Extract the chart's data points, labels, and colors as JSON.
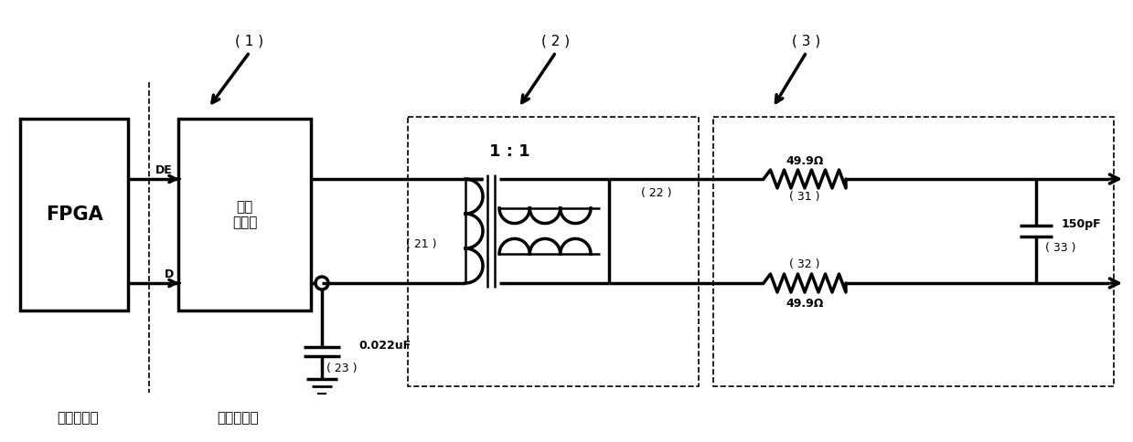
{
  "background": "#ffffff",
  "figsize": [
    12.39,
    4.84
  ],
  "dpi": 100,
  "fpga_label": "FPGA",
  "bt_label": "总线\n收发器",
  "de_label": "DE",
  "d_label": "D",
  "ratio_label": "1 : 1",
  "cap23_label": "0.022uF",
  "num23_label": "( 23 )",
  "res31_label": "49.9Ω",
  "res32_label": "49.9Ω",
  "cap33_label": "150pF",
  "num1_label": "( 1 )",
  "num2_label": "( 2 )",
  "num3_label": "( 3 )",
  "num21_label": "( 21 )",
  "num22_label": "( 22 )",
  "num31_label": "( 31 )",
  "num32_label": "( 32 )",
  "num33_label": "( 33 )",
  "bottom_left": "链路层设计",
  "bottom_mid": "物理层设计"
}
